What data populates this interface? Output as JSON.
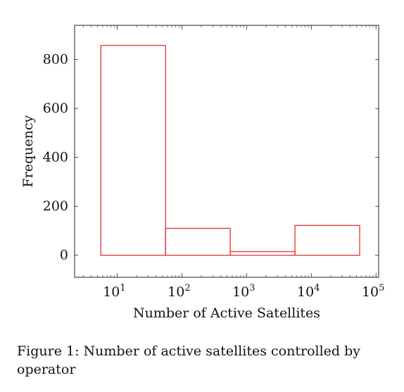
{
  "chart_data": {
    "type": "bar",
    "xscale": "log",
    "bins": [
      {
        "x_start": 5.6,
        "x_end": 56,
        "value": 858
      },
      {
        "x_start": 56,
        "x_end": 560,
        "value": 110
      },
      {
        "x_start": 560,
        "x_end": 5600,
        "value": 15
      },
      {
        "x_start": 5600,
        "x_end": 56000,
        "value": 122
      }
    ],
    "values": [
      858,
      110,
      15,
      122
    ],
    "xlabel": "Number of Active Satellites",
    "ylabel": "Frequency",
    "xlim": [
      2.2,
      110000
    ],
    "ylim": [
      -90,
      940
    ],
    "xticks": [
      {
        "value": 10,
        "base": "10",
        "exp": "1"
      },
      {
        "value": 100,
        "base": "10",
        "exp": "2"
      },
      {
        "value": 1000,
        "base": "10",
        "exp": "3"
      },
      {
        "value": 10000,
        "base": "10",
        "exp": "4"
      },
      {
        "value": 100000,
        "base": "10",
        "exp": "5"
      }
    ],
    "yticks": [
      0,
      200,
      400,
      600,
      800
    ],
    "grid": false,
    "colors": {
      "bar_stroke": "#dd3333",
      "axis": "#222222"
    }
  },
  "caption": {
    "text": "Figure 1: Number of active satellites controlled by operator"
  }
}
